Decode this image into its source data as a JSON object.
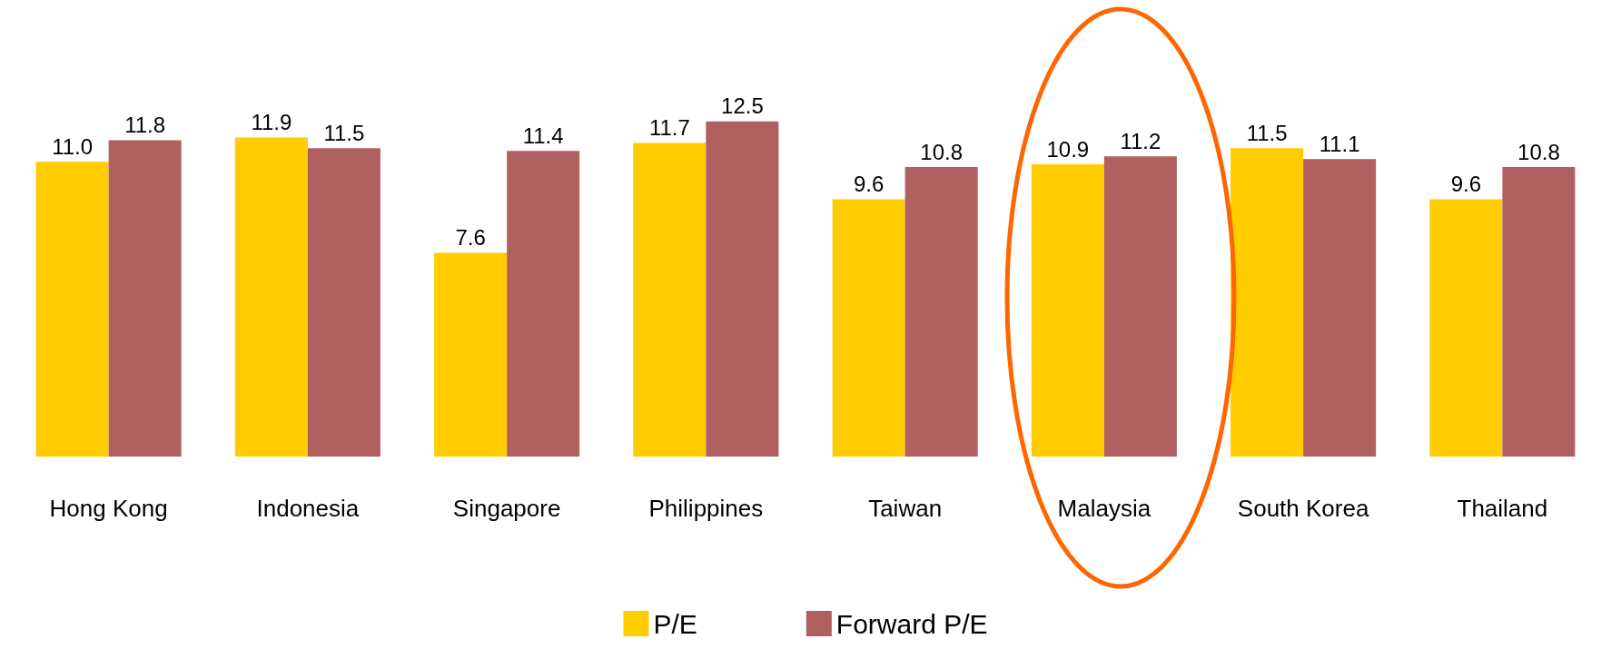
{
  "chart_data": {
    "type": "bar",
    "categories": [
      "Hong Kong",
      "Indonesia",
      "Singapore",
      "Philippines",
      "Taiwan",
      "Malaysia",
      "South Korea",
      "Thailand"
    ],
    "series": [
      {
        "name": "P/E",
        "color": "#ffcc00",
        "values": [
          11.0,
          11.9,
          7.6,
          11.7,
          9.6,
          10.9,
          11.5,
          9.6
        ],
        "value_labels": [
          "11.0",
          "11.9",
          "7.6",
          "11.7",
          "9.6",
          "10.9",
          "11.5",
          "9.6"
        ]
      },
      {
        "name": "Forward P/E",
        "color": "#b06060",
        "values": [
          11.8,
          11.5,
          11.4,
          12.5,
          10.8,
          11.2,
          11.1,
          10.8
        ],
        "value_labels": [
          "11.8",
          "11.5",
          "11.4",
          "12.5",
          "10.8",
          "11.2",
          "11.1",
          "10.8"
        ]
      }
    ],
    "legend": "bottom",
    "grid": false
  }
}
